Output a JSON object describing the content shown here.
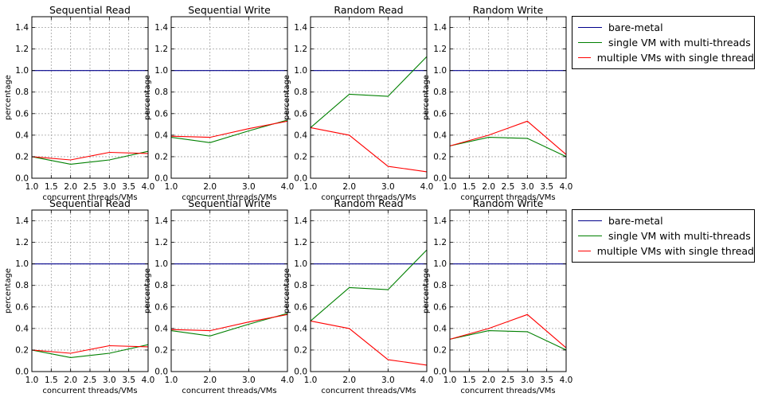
{
  "colors": {
    "bare_metal": "#00008b",
    "single_vm": "#008000",
    "multi_vm": "#ff0000",
    "grid": "#a0a0a0",
    "axes": "#000000"
  },
  "legend": {
    "entries": [
      "bare-metal",
      "single VM with multi-threads",
      "multiple VMs with single thread"
    ]
  },
  "chart_data": [
    {
      "type": "line",
      "title": "Sequential Read",
      "xlabel": "concurrent threads/VMs",
      "ylabel": "percentage",
      "xlim": [
        1.0,
        4.0
      ],
      "ylim": [
        0.0,
        1.5
      ],
      "grid": true,
      "xticks": [
        "1.0",
        "1.5",
        "2.0",
        "2.5",
        "3.0",
        "3.5",
        "4.0"
      ],
      "yticks": [
        "0.0",
        "0.2",
        "0.4",
        "0.6",
        "0.8",
        "1.0",
        "1.2",
        "1.4"
      ],
      "x": [
        1,
        2,
        3,
        4
      ],
      "series": [
        {
          "name": "bare-metal",
          "values": [
            1.0,
            1.0,
            1.0,
            1.0
          ]
        },
        {
          "name": "single VM with multi-threads",
          "values": [
            0.2,
            0.13,
            0.17,
            0.25
          ]
        },
        {
          "name": "multiple VMs with single thread",
          "values": [
            0.2,
            0.17,
            0.24,
            0.23
          ]
        }
      ]
    },
    {
      "type": "line",
      "title": "Sequential Write",
      "xlabel": "concurrent threads/VMs",
      "ylabel": "percentage",
      "xlim": [
        1.0,
        4.0
      ],
      "ylim": [
        0.0,
        1.5
      ],
      "grid": true,
      "xticks": [
        "1.0",
        "2.0",
        "3.0",
        "4.0"
      ],
      "yticks": [
        "0.0",
        "0.2",
        "0.4",
        "0.6",
        "0.8",
        "1.0",
        "1.2",
        "1.4"
      ],
      "x": [
        1,
        2,
        3,
        4
      ],
      "series": [
        {
          "name": "bare-metal",
          "values": [
            1.0,
            1.0,
            1.0,
            1.0
          ]
        },
        {
          "name": "single VM with multi-threads",
          "values": [
            0.38,
            0.33,
            0.44,
            0.54
          ]
        },
        {
          "name": "multiple VMs with single thread",
          "values": [
            0.39,
            0.38,
            0.46,
            0.53
          ]
        }
      ]
    },
    {
      "type": "line",
      "title": "Random Read",
      "xlabel": "concurrent threads/VMs",
      "ylabel": "percentage",
      "xlim": [
        1.0,
        4.0
      ],
      "ylim": [
        0.0,
        1.5
      ],
      "grid": true,
      "xticks": [
        "1.0",
        "2.0",
        "3.0",
        "4.0"
      ],
      "yticks": [
        "0.0",
        "0.2",
        "0.4",
        "0.6",
        "0.8",
        "1.0",
        "1.2",
        "1.4"
      ],
      "x": [
        1,
        2,
        3,
        4
      ],
      "series": [
        {
          "name": "bare-metal",
          "values": [
            1.0,
            1.0,
            1.0,
            1.0
          ]
        },
        {
          "name": "single VM with multi-threads",
          "values": [
            0.47,
            0.78,
            0.76,
            1.13
          ]
        },
        {
          "name": "multiple VMs with single thread",
          "values": [
            0.47,
            0.4,
            0.11,
            0.06
          ]
        }
      ]
    },
    {
      "type": "line",
      "title": "Random Write",
      "xlabel": "concurrent threads/VMs",
      "ylabel": "percentage",
      "xlim": [
        1.0,
        4.0
      ],
      "ylim": [
        0.0,
        1.5
      ],
      "grid": true,
      "xticks": [
        "1.0",
        "1.5",
        "2.0",
        "2.5",
        "3.0",
        "3.5",
        "4.0"
      ],
      "yticks": [
        "0.0",
        "0.2",
        "0.4",
        "0.6",
        "0.8",
        "1.0",
        "1.2",
        "1.4"
      ],
      "x": [
        1,
        2,
        3,
        4
      ],
      "series": [
        {
          "name": "bare-metal",
          "values": [
            1.0,
            1.0,
            1.0,
            1.0
          ]
        },
        {
          "name": "single VM with multi-threads",
          "values": [
            0.3,
            0.38,
            0.37,
            0.2
          ]
        },
        {
          "name": "multiple VMs with single thread",
          "values": [
            0.3,
            0.4,
            0.53,
            0.22
          ]
        }
      ]
    },
    {
      "type": "line",
      "title": "Sequential Read",
      "xlabel": "concurrent threads/VMs",
      "ylabel": "percentage",
      "xlim": [
        1.0,
        4.0
      ],
      "ylim": [
        0.0,
        1.5
      ],
      "grid": true,
      "xticks": [
        "1.0",
        "1.5",
        "2.0",
        "2.5",
        "3.0",
        "3.5",
        "4.0"
      ],
      "yticks": [
        "0.0",
        "0.2",
        "0.4",
        "0.6",
        "0.8",
        "1.0",
        "1.2",
        "1.4"
      ],
      "x": [
        1,
        2,
        3,
        4
      ],
      "series": [
        {
          "name": "bare-metal",
          "values": [
            1.0,
            1.0,
            1.0,
            1.0
          ]
        },
        {
          "name": "single VM with multi-threads",
          "values": [
            0.2,
            0.13,
            0.17,
            0.25
          ]
        },
        {
          "name": "multiple VMs with single thread",
          "values": [
            0.2,
            0.17,
            0.24,
            0.23
          ]
        }
      ]
    },
    {
      "type": "line",
      "title": "Sequential Write",
      "xlabel": "concurrent threads/VMs",
      "ylabel": "percentage",
      "xlim": [
        1.0,
        4.0
      ],
      "ylim": [
        0.0,
        1.5
      ],
      "grid": true,
      "xticks": [
        "1.0",
        "2.0",
        "3.0",
        "4.0"
      ],
      "yticks": [
        "0.0",
        "0.2",
        "0.4",
        "0.6",
        "0.8",
        "1.0",
        "1.2",
        "1.4"
      ],
      "x": [
        1,
        2,
        3,
        4
      ],
      "series": [
        {
          "name": "bare-metal",
          "values": [
            1.0,
            1.0,
            1.0,
            1.0
          ]
        },
        {
          "name": "single VM with multi-threads",
          "values": [
            0.38,
            0.33,
            0.44,
            0.54
          ]
        },
        {
          "name": "multiple VMs with single thread",
          "values": [
            0.39,
            0.38,
            0.46,
            0.53
          ]
        }
      ]
    },
    {
      "type": "line",
      "title": "Random Read",
      "xlabel": "concurrent threads/VMs",
      "ylabel": "percentage",
      "xlim": [
        1.0,
        4.0
      ],
      "ylim": [
        0.0,
        1.5
      ],
      "grid": true,
      "xticks": [
        "1.0",
        "2.0",
        "3.0",
        "4.0"
      ],
      "yticks": [
        "0.0",
        "0.2",
        "0.4",
        "0.6",
        "0.8",
        "1.0",
        "1.2",
        "1.4"
      ],
      "x": [
        1,
        2,
        3,
        4
      ],
      "series": [
        {
          "name": "bare-metal",
          "values": [
            1.0,
            1.0,
            1.0,
            1.0
          ]
        },
        {
          "name": "single VM with multi-threads",
          "values": [
            0.47,
            0.78,
            0.76,
            1.13
          ]
        },
        {
          "name": "multiple VMs with single thread",
          "values": [
            0.47,
            0.4,
            0.11,
            0.06
          ]
        }
      ]
    },
    {
      "type": "line",
      "title": "Random Write",
      "xlabel": "concurrent threads/VMs",
      "ylabel": "percentage",
      "xlim": [
        1.0,
        4.0
      ],
      "ylim": [
        0.0,
        1.5
      ],
      "grid": true,
      "xticks": [
        "1.0",
        "1.5",
        "2.0",
        "2.5",
        "3.0",
        "3.5",
        "4.0"
      ],
      "yticks": [
        "0.0",
        "0.2",
        "0.4",
        "0.6",
        "0.8",
        "1.0",
        "1.2",
        "1.4"
      ],
      "x": [
        1,
        2,
        3,
        4
      ],
      "series": [
        {
          "name": "bare-metal",
          "values": [
            1.0,
            1.0,
            1.0,
            1.0
          ]
        },
        {
          "name": "single VM with multi-threads",
          "values": [
            0.3,
            0.38,
            0.37,
            0.2
          ]
        },
        {
          "name": "multiple VMs with single thread",
          "values": [
            0.3,
            0.4,
            0.53,
            0.22
          ]
        }
      ]
    }
  ]
}
